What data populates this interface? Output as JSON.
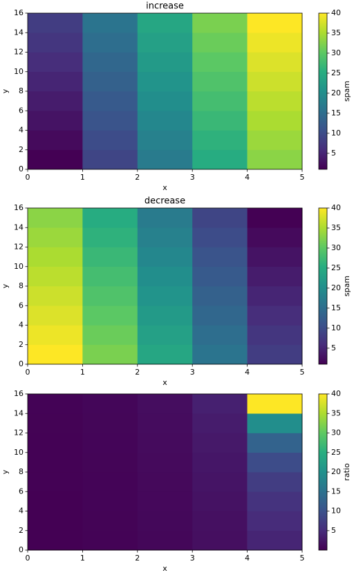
{
  "chart_data": [
    {
      "type": "heatmap",
      "title": "increase",
      "xlabel": "x",
      "ylabel": "y",
      "colorbar_label": "spam",
      "colormap": "viridis",
      "x_edges": [
        0,
        1,
        2,
        3,
        4,
        5
      ],
      "y_edges": [
        0,
        2,
        4,
        6,
        8,
        10,
        12,
        14,
        16
      ],
      "z": [
        [
          1,
          9,
          17,
          25,
          33
        ],
        [
          2,
          10,
          18,
          26,
          34
        ],
        [
          3,
          11,
          19,
          27,
          35
        ],
        [
          4,
          12,
          20,
          28,
          36
        ],
        [
          5,
          13,
          21,
          29,
          37
        ],
        [
          6,
          14,
          22,
          30,
          38
        ],
        [
          7,
          15,
          23,
          31,
          39
        ],
        [
          8,
          16,
          24,
          32,
          40
        ]
      ],
      "clim": [
        1,
        40
      ],
      "cbar_ticks": [
        5,
        10,
        15,
        20,
        25,
        30,
        35,
        40
      ],
      "xlim": [
        0,
        5
      ],
      "ylim": [
        0,
        16
      ],
      "xticks": [
        0,
        1,
        2,
        3,
        4,
        5
      ],
      "yticks": [
        0,
        2,
        4,
        6,
        8,
        10,
        12,
        14,
        16
      ]
    },
    {
      "type": "heatmap",
      "title": "decrease",
      "xlabel": "x",
      "ylabel": "y",
      "colorbar_label": "spam",
      "colormap": "viridis",
      "x_edges": [
        0,
        1,
        2,
        3,
        4,
        5
      ],
      "y_edges": [
        0,
        2,
        4,
        6,
        8,
        10,
        12,
        14,
        16
      ],
      "z": [
        [
          40,
          32,
          24,
          16,
          8
        ],
        [
          39,
          31,
          23,
          15,
          7
        ],
        [
          38,
          30,
          22,
          14,
          6
        ],
        [
          37,
          29,
          21,
          13,
          5
        ],
        [
          36,
          28,
          20,
          12,
          4
        ],
        [
          35,
          27,
          19,
          11,
          3
        ],
        [
          34,
          26,
          18,
          10,
          2
        ],
        [
          33,
          25,
          17,
          9,
          1
        ]
      ],
      "clim": [
        1,
        40
      ],
      "cbar_ticks": [
        5,
        10,
        15,
        20,
        25,
        30,
        35,
        40
      ],
      "xlim": [
        0,
        5
      ],
      "ylim": [
        0,
        16
      ],
      "xticks": [
        0,
        1,
        2,
        3,
        4,
        5
      ],
      "yticks": [
        0,
        2,
        4,
        6,
        8,
        10,
        12,
        14,
        16
      ]
    },
    {
      "type": "heatmap",
      "xlabel": "x",
      "ylabel": "y",
      "colorbar_label": "ratio",
      "colormap": "viridis",
      "x_edges": [
        0,
        1,
        2,
        3,
        4,
        5
      ],
      "y_edges": [
        0,
        2,
        4,
        6,
        8,
        10,
        12,
        14,
        16
      ],
      "z": [
        [
          0.025,
          0.281,
          0.708,
          1.5625,
          4.125
        ],
        [
          0.051,
          0.323,
          0.783,
          1.733,
          4.857
        ],
        [
          0.079,
          0.367,
          0.864,
          1.929,
          5.833
        ],
        [
          0.108,
          0.414,
          0.952,
          2.154,
          7.2
        ],
        [
          0.139,
          0.464,
          1.05,
          2.417,
          9.25
        ],
        [
          0.171,
          0.519,
          1.158,
          2.727,
          12.667
        ],
        [
          0.206,
          0.577,
          1.278,
          3.1,
          19.5
        ],
        [
          0.242,
          0.64,
          1.412,
          3.556,
          40
        ]
      ],
      "clim": [
        0.025,
        40
      ],
      "cbar_ticks": [
        5,
        10,
        15,
        20,
        25,
        30,
        35,
        40
      ],
      "xlim": [
        0,
        5
      ],
      "ylim": [
        0,
        16
      ],
      "xticks": [
        0,
        1,
        2,
        3,
        4,
        5
      ],
      "yticks": [
        0,
        2,
        4,
        6,
        8,
        10,
        12,
        14,
        16
      ]
    }
  ]
}
